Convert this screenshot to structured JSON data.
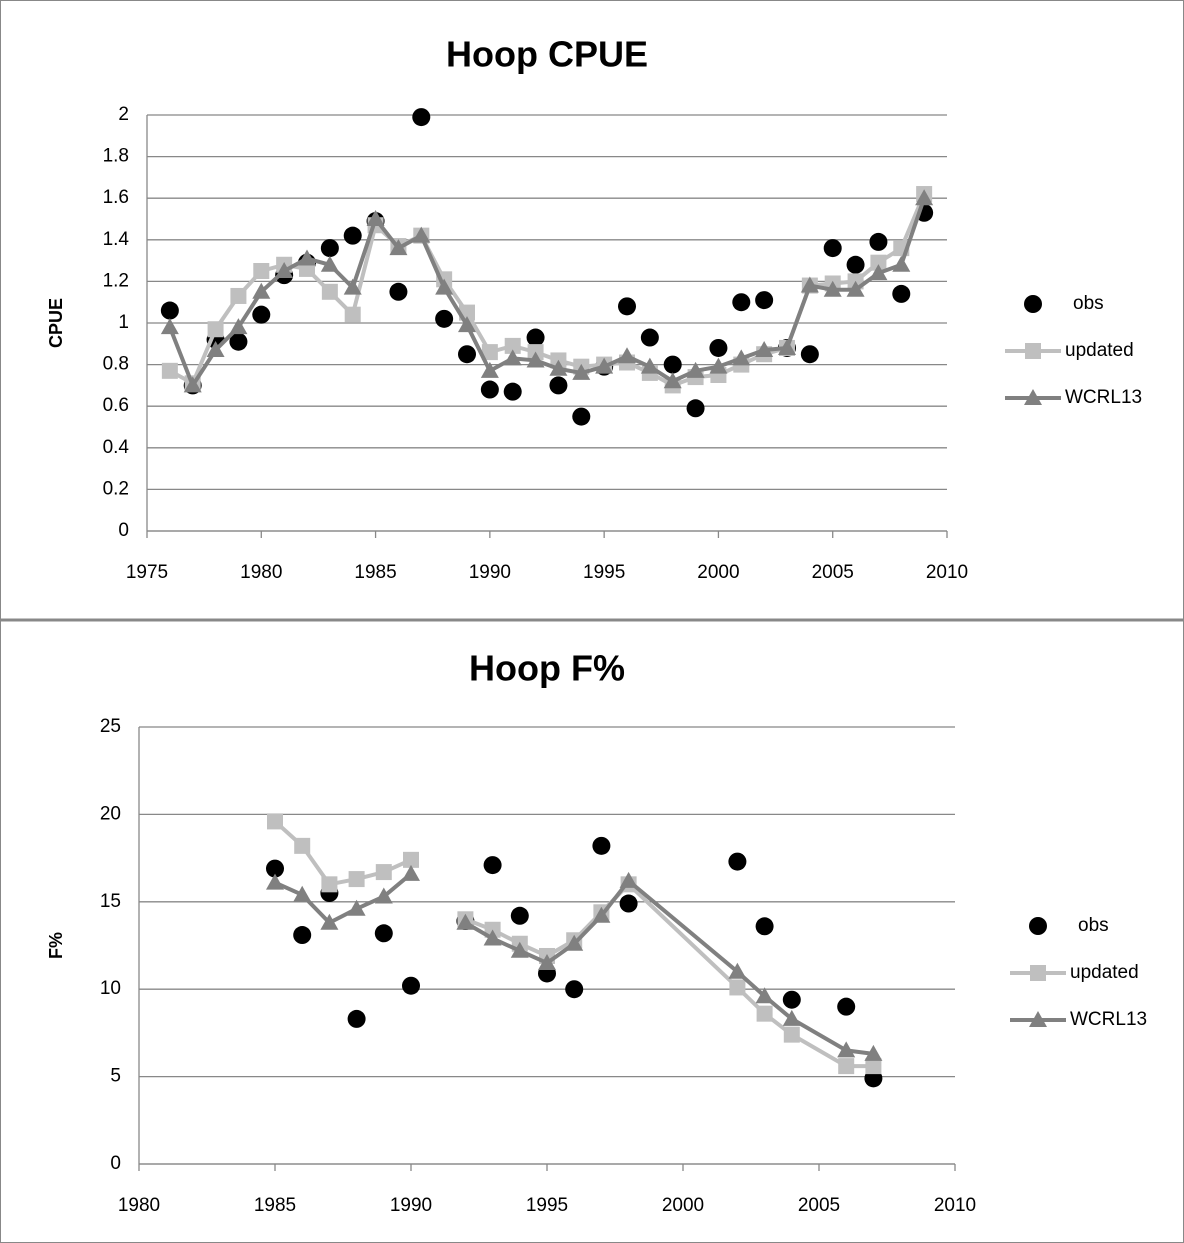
{
  "chart_data": [
    {
      "type": "line",
      "title": "Hoop CPUE",
      "y_label": "CPUE",
      "x": [
        1976,
        1977,
        1978,
        1979,
        1980,
        1981,
        1982,
        1983,
        1984,
        1985,
        1986,
        1987,
        1988,
        1989,
        1990,
        1991,
        1992,
        1993,
        1994,
        1995,
        1996,
        1997,
        1998,
        1999,
        2000,
        2001,
        2002,
        2003,
        2004,
        2005,
        2006,
        2007,
        2008,
        2009
      ],
      "series": [
        {
          "name": "obs",
          "color": "#000000",
          "marker": "circle",
          "line": false,
          "values": [
            1.06,
            0.7,
            0.92,
            0.91,
            1.04,
            1.23,
            1.29,
            1.36,
            1.42,
            1.49,
            1.15,
            1.99,
            1.02,
            0.85,
            0.68,
            0.67,
            0.93,
            0.7,
            0.55,
            0.79,
            1.08,
            0.93,
            0.8,
            0.59,
            0.88,
            1.1,
            1.11,
            0.88,
            0.85,
            1.36,
            1.28,
            1.39,
            1.14,
            1.53
          ]
        },
        {
          "name": "updated",
          "color": "#bfbfbf",
          "marker": "square",
          "line": true,
          "values": [
            0.77,
            0.71,
            0.97,
            1.13,
            1.25,
            1.28,
            1.26,
            1.15,
            1.04,
            1.47,
            1.37,
            1.42,
            1.21,
            1.05,
            0.86,
            0.89,
            0.86,
            0.82,
            0.79,
            0.8,
            0.81,
            0.76,
            0.7,
            0.74,
            0.75,
            0.8,
            0.85,
            0.88,
            1.18,
            1.19,
            1.2,
            1.29,
            1.36,
            1.62
          ]
        },
        {
          "name": "WCRL13",
          "color": "#808080",
          "marker": "triangle",
          "line": true,
          "values": [
            0.98,
            0.7,
            0.87,
            0.98,
            1.15,
            1.25,
            1.31,
            1.28,
            1.17,
            1.5,
            1.36,
            1.42,
            1.17,
            0.99,
            0.77,
            0.83,
            0.82,
            0.78,
            0.76,
            0.79,
            0.84,
            0.79,
            0.72,
            0.77,
            0.79,
            0.83,
            0.87,
            0.88,
            1.18,
            1.16,
            1.16,
            1.24,
            1.28,
            1.6
          ]
        }
      ],
      "xlim": [
        1975,
        2010
      ],
      "xticks": [
        1975,
        1980,
        1985,
        1990,
        1995,
        2000,
        2005,
        2010
      ],
      "ylim": [
        0,
        2
      ],
      "yticks": [
        0,
        0.2,
        0.4,
        0.6,
        0.8,
        1,
        1.2,
        1.4,
        1.6,
        1.8,
        2
      ],
      "grid": true,
      "legend": "right"
    },
    {
      "type": "line",
      "title": "Hoop F%",
      "y_label": "F%",
      "x": [
        1985,
        1986,
        1987,
        1988,
        1989,
        1990,
        1991,
        1992,
        1993,
        1994,
        1995,
        1996,
        1997,
        1998,
        2002,
        2003,
        2004,
        2006,
        2007
      ],
      "series": [
        {
          "name": "obs",
          "color": "#000000",
          "marker": "circle",
          "line": false,
          "values": [
            16.9,
            13.1,
            15.5,
            8.3,
            13.2,
            10.2,
            null,
            13.9,
            17.1,
            14.2,
            10.9,
            10.0,
            18.2,
            14.9,
            17.3,
            13.6,
            9.4,
            9.0,
            4.9
          ]
        },
        {
          "name": "updated",
          "color": "#bfbfbf",
          "marker": "square",
          "line": true,
          "values": [
            19.6,
            18.2,
            16.0,
            16.3,
            16.7,
            17.4,
            null,
            14.0,
            13.4,
            12.6,
            11.9,
            12.8,
            14.4,
            16.0,
            10.1,
            8.6,
            7.4,
            5.6,
            5.6
          ]
        },
        {
          "name": "WCRL13",
          "color": "#808080",
          "marker": "triangle",
          "line": true,
          "values": [
            16.1,
            15.4,
            13.8,
            14.6,
            15.3,
            16.6,
            null,
            13.8,
            12.9,
            12.2,
            11.5,
            12.6,
            14.2,
            16.2,
            11.0,
            9.6,
            8.3,
            6.5,
            6.3
          ]
        }
      ],
      "xlim": [
        1980,
        2010
      ],
      "xticks": [
        1980,
        1985,
        1990,
        1995,
        2000,
        2005,
        2010
      ],
      "ylim": [
        0,
        25
      ],
      "yticks": [
        0,
        5,
        10,
        15,
        20,
        25
      ],
      "grid": true,
      "legend": "right"
    }
  ]
}
